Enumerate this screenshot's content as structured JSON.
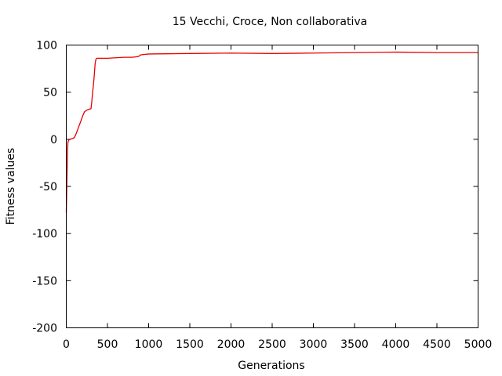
{
  "chart_data": {
    "type": "line",
    "title": "15 Vecchi, Croce, Non collaborativa",
    "xlabel": "Generations",
    "ylabel": "Fitness values",
    "xlim": [
      0,
      5000
    ],
    "ylim": [
      -200,
      100
    ],
    "xticks": [
      0,
      500,
      1000,
      1500,
      2000,
      2500,
      3000,
      3500,
      4000,
      4500,
      5000
    ],
    "yticks": [
      -200,
      -150,
      -100,
      -50,
      0,
      50,
      100
    ],
    "grid": false,
    "legend": "none",
    "series": [
      {
        "color": "#e60000",
        "x": [
          0,
          5,
          10,
          15,
          20,
          30,
          40,
          60,
          80,
          100,
          120,
          150,
          180,
          200,
          220,
          250,
          280,
          300,
          310,
          320,
          330,
          340,
          350,
          360,
          370,
          400,
          500,
          600,
          700,
          800,
          850,
          880,
          900,
          950,
          1000,
          1500,
          2000,
          2500,
          3000,
          3500,
          4000,
          4500,
          5000
        ],
        "y": [
          -78,
          -55,
          -35,
          -15,
          -3,
          -1,
          0,
          0.5,
          1,
          2,
          6,
          13,
          20,
          25,
          29,
          31,
          32,
          32.5,
          40,
          50,
          58,
          68,
          80,
          85,
          86,
          86,
          86,
          86.5,
          87,
          87,
          87.5,
          88,
          89.5,
          90,
          90.5,
          91,
          91.5,
          91,
          91.5,
          92,
          92.5,
          92,
          92
        ]
      }
    ]
  }
}
